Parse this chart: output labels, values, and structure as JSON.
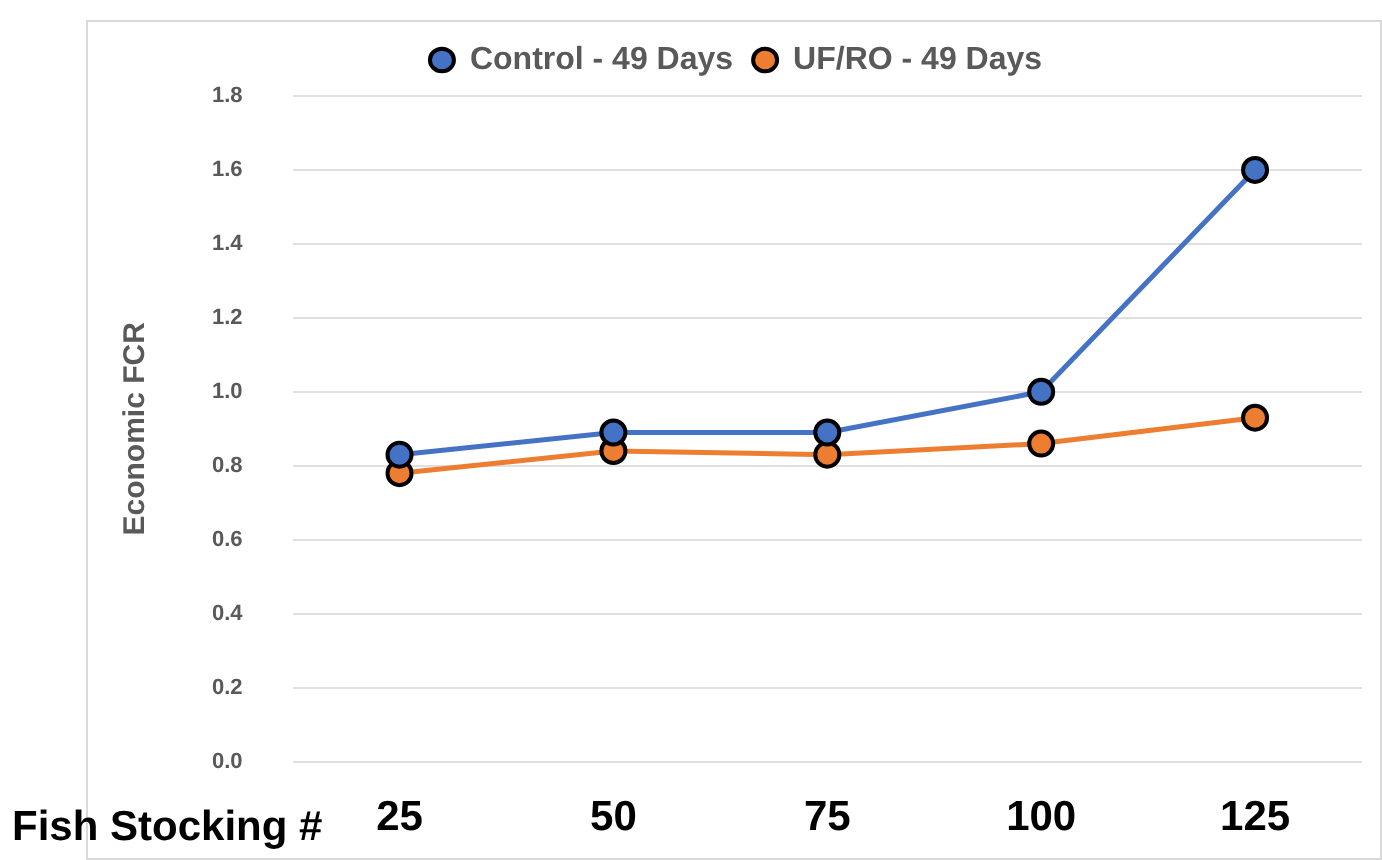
{
  "chart_data": {
    "type": "line",
    "xlabel": "Fish Stocking #",
    "ylabel": "Economic FCR",
    "categories": [
      "25",
      "50",
      "75",
      "100",
      "125"
    ],
    "series": [
      {
        "name": "Control - 49 Days",
        "color": "#4472c4",
        "values": [
          0.83,
          0.89,
          0.89,
          1.0,
          1.6
        ]
      },
      {
        "name": "UF/RO - 49 Days",
        "color": "#ed7d31",
        "values": [
          0.78,
          0.84,
          0.83,
          0.86,
          0.93
        ]
      }
    ],
    "ylim": [
      0,
      1.8
    ],
    "yticks": [
      {
        "value": 0,
        "label": "0.0"
      },
      0.2,
      0.4,
      0.6,
      0.8,
      {
        "value": 1,
        "label": "1.0"
      },
      1.2,
      1.4,
      1.6,
      1.8
    ],
    "grid": "y",
    "legend": "top",
    "marker": "circle",
    "line_style": "solid"
  }
}
